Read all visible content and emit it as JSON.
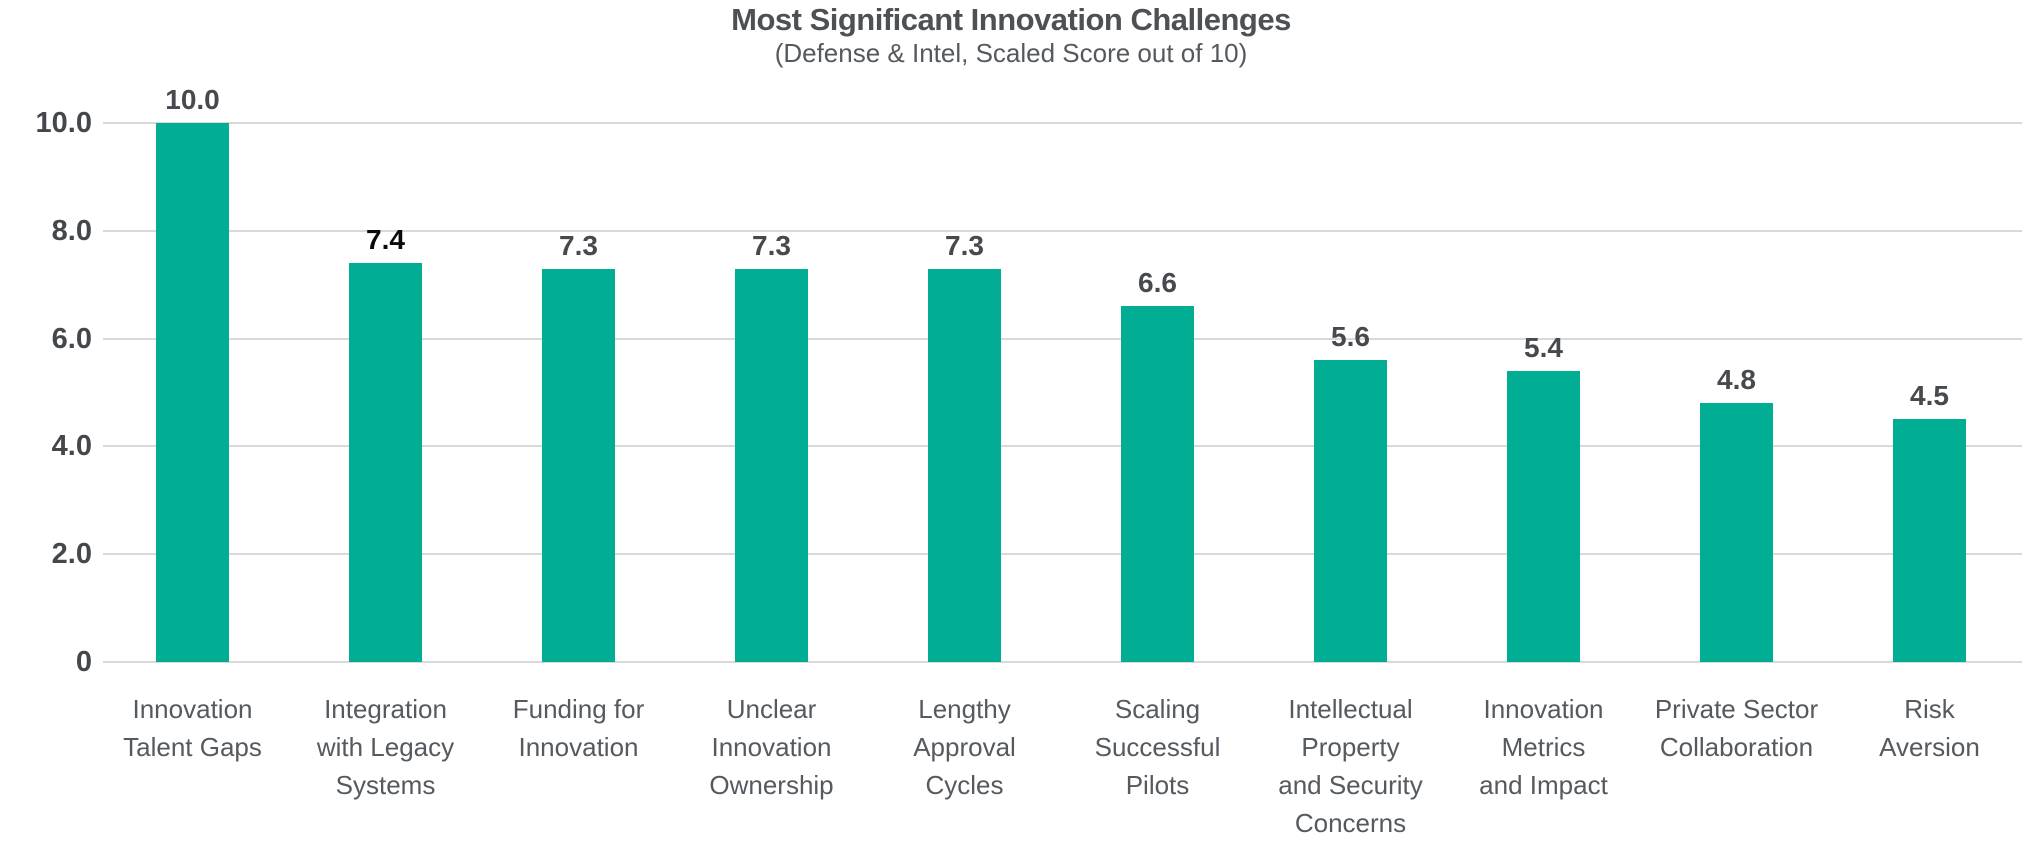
{
  "page": {
    "background": "#FFFFFF"
  },
  "chart_data": {
    "type": "bar",
    "title": "Most Significant Innovation Challenges",
    "subtitle": "(Defense & Intel, Scaled Score out of 10)",
    "categories": [
      "Innovation\nTalent Gaps",
      "Integration\nwith Legacy\nSystems",
      "Funding for\nInnovation",
      "Unclear\nInnovation\nOwnership",
      "Lengthy\nApproval\nCycles",
      "Scaling\nSuccessful\nPilots",
      "Intellectual\nProperty\nand Security\nConcerns",
      "Innovation\nMetrics\nand Impact",
      "Private Sector\nCollaboration",
      "Risk\nAversion"
    ],
    "values": [
      10.0,
      7.4,
      7.3,
      7.3,
      7.3,
      6.6,
      5.6,
      5.4,
      4.8,
      4.5
    ],
    "value_labels": [
      "10.0",
      "7.4",
      "7.3",
      "7.3",
      "7.3",
      "6.6",
      "5.6",
      "5.4",
      "4.8",
      "4.5"
    ],
    "xlabel": "",
    "ylabel": "",
    "ylim": [
      0,
      10
    ],
    "ytick_labels": [
      "10.0",
      "8.0",
      "6.0",
      "4.0",
      "2.0",
      "0"
    ],
    "ytick_values": [
      10,
      8,
      6,
      4,
      2,
      0
    ],
    "grid": true,
    "legend_position": "none",
    "colors": {
      "bar": "#02AE93",
      "gridline": "#D9D9D9",
      "title": "#4D5156",
      "subtitle": "#55595D",
      "axis_tick_label": "#44484C",
      "category_label": "#545A5F",
      "value_label_default": "#46494D",
      "value_label_emphasis": "#0A0A0A"
    },
    "value_label_color_overrides": {
      "1": "#0A0A0A"
    }
  }
}
